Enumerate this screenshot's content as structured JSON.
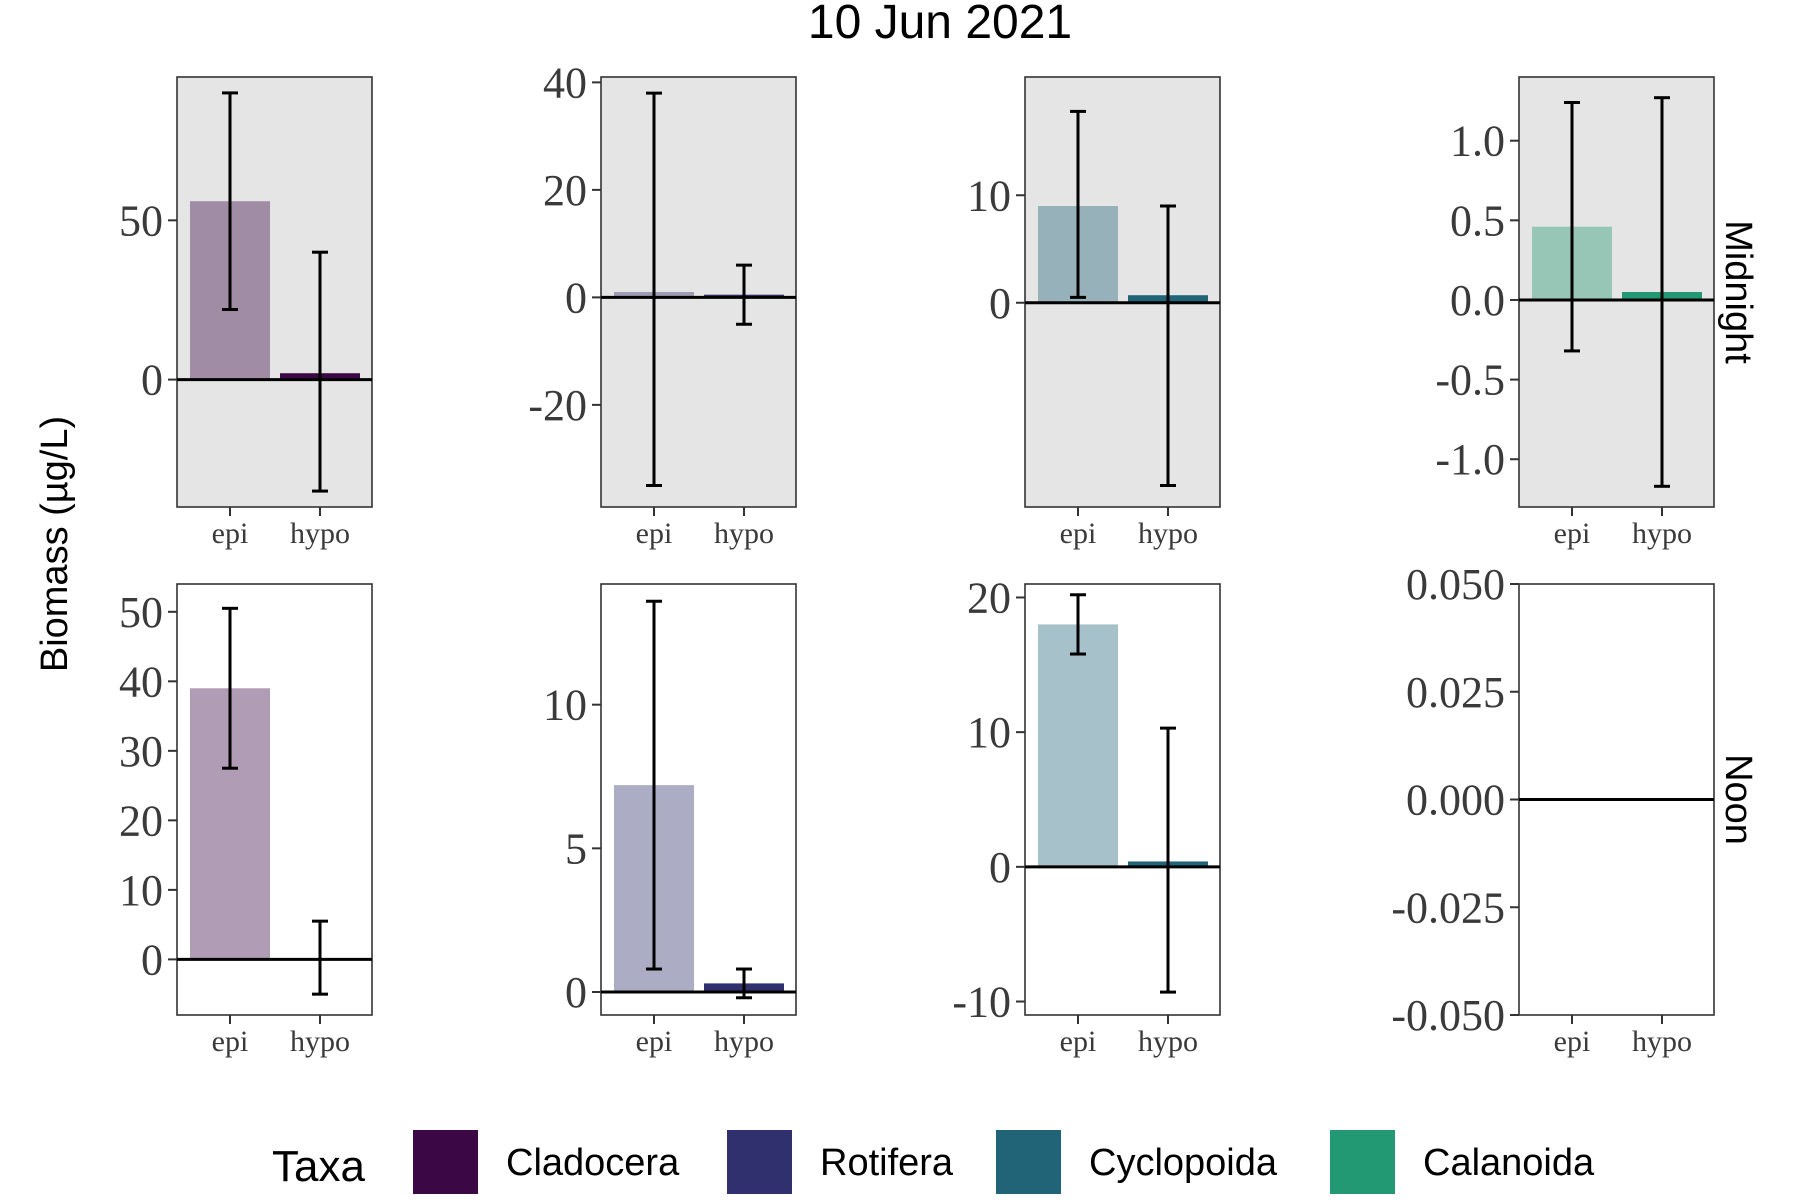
{
  "chart_data": {
    "type": "bar",
    "title": "10 Jun 2021",
    "ylabel": "Biomass (µg/L)",
    "categories": [
      "epi",
      "hypo"
    ],
    "taxa": [
      "Cladocera",
      "Rotifera",
      "Cyclopoida",
      "Calanoida"
    ],
    "rows": [
      "Midnight",
      "Noon"
    ],
    "colors": {
      "Cladocera": "#3b0745",
      "Rotifera": "#31306e",
      "Cyclopoida": "#216478",
      "Calanoida": "#229973"
    },
    "legend": {
      "title": "Taxa",
      "position": "bottom"
    },
    "panels": [
      {
        "row": "Midnight",
        "taxon": "Cladocera",
        "ylim": [
          -40,
          95
        ],
        "ticks": [
          0,
          50
        ],
        "bars": [
          {
            "x": "epi",
            "value": 56,
            "lo": 22,
            "hi": 90,
            "alpha": 0.4
          },
          {
            "x": "hypo",
            "value": 2,
            "lo": -35,
            "hi": 40,
            "alpha": 1.0
          }
        ]
      },
      {
        "row": "Midnight",
        "taxon": "Rotifera",
        "ylim": [
          -39,
          41
        ],
        "ticks": [
          -20,
          0,
          20,
          40
        ],
        "bars": [
          {
            "x": "epi",
            "value": 1,
            "lo": -35,
            "hi": 38,
            "alpha": 0.4
          },
          {
            "x": "hypo",
            "value": 0.5,
            "lo": -5,
            "hi": 6,
            "alpha": 1.0
          }
        ]
      },
      {
        "row": "Midnight",
        "taxon": "Cyclopoida",
        "ylim": [
          -19,
          21
        ],
        "ticks": [
          0,
          10
        ],
        "bars": [
          {
            "x": "epi",
            "value": 9,
            "lo": 0.5,
            "hi": 17.8,
            "alpha": 0.4
          },
          {
            "x": "hypo",
            "value": 0.7,
            "lo": -17,
            "hi": 9,
            "alpha": 1.0
          }
        ]
      },
      {
        "row": "Midnight",
        "taxon": "Calanoida",
        "ylim": [
          -1.3,
          1.4
        ],
        "ticks": [
          -1.0,
          -0.5,
          0.0,
          0.5,
          1.0
        ],
        "decimals": 1,
        "bars": [
          {
            "x": "epi",
            "value": 0.46,
            "lo": -0.32,
            "hi": 1.24,
            "alpha": 0.4
          },
          {
            "x": "hypo",
            "value": 0.05,
            "lo": -1.17,
            "hi": 1.27,
            "alpha": 1.0
          }
        ]
      },
      {
        "row": "Noon",
        "taxon": "Cladocera",
        "ylim": [
          -8,
          54
        ],
        "ticks": [
          0,
          10,
          20,
          30,
          40,
          50
        ],
        "bars": [
          {
            "x": "epi",
            "value": 39,
            "lo": 27.5,
            "hi": 50.5,
            "alpha": 0.4
          },
          {
            "x": "hypo",
            "value": 0,
            "lo": -5,
            "hi": 5.5,
            "alpha": 1.0
          }
        ]
      },
      {
        "row": "Noon",
        "taxon": "Rotifera",
        "ylim": [
          -0.8,
          14.2
        ],
        "ticks": [
          0,
          5,
          10
        ],
        "bars": [
          {
            "x": "epi",
            "value": 7.2,
            "lo": 0.8,
            "hi": 13.6,
            "alpha": 0.4
          },
          {
            "x": "hypo",
            "value": 0.3,
            "lo": -0.2,
            "hi": 0.8,
            "alpha": 1.0
          }
        ]
      },
      {
        "row": "Noon",
        "taxon": "Cyclopoida",
        "ylim": [
          -11,
          21
        ],
        "ticks": [
          -10,
          0,
          10,
          20
        ],
        "bars": [
          {
            "x": "epi",
            "value": 18,
            "lo": 15.8,
            "hi": 20.2,
            "alpha": 0.4
          },
          {
            "x": "hypo",
            "value": 0.4,
            "lo": -9.3,
            "hi": 10.3,
            "alpha": 1.0
          }
        ]
      },
      {
        "row": "Noon",
        "taxon": "Calanoida",
        "ylim": [
          -0.05,
          0.05
        ],
        "ticks": [
          -0.05,
          -0.025,
          0.0,
          0.025,
          0.05
        ],
        "decimals": 3,
        "bars": [
          {
            "x": "epi",
            "value": 0,
            "lo": 0,
            "hi": 0,
            "alpha": 0.4
          },
          {
            "x": "hypo",
            "value": 0,
            "lo": 0,
            "hi": 0,
            "alpha": 1.0
          }
        ]
      }
    ]
  }
}
